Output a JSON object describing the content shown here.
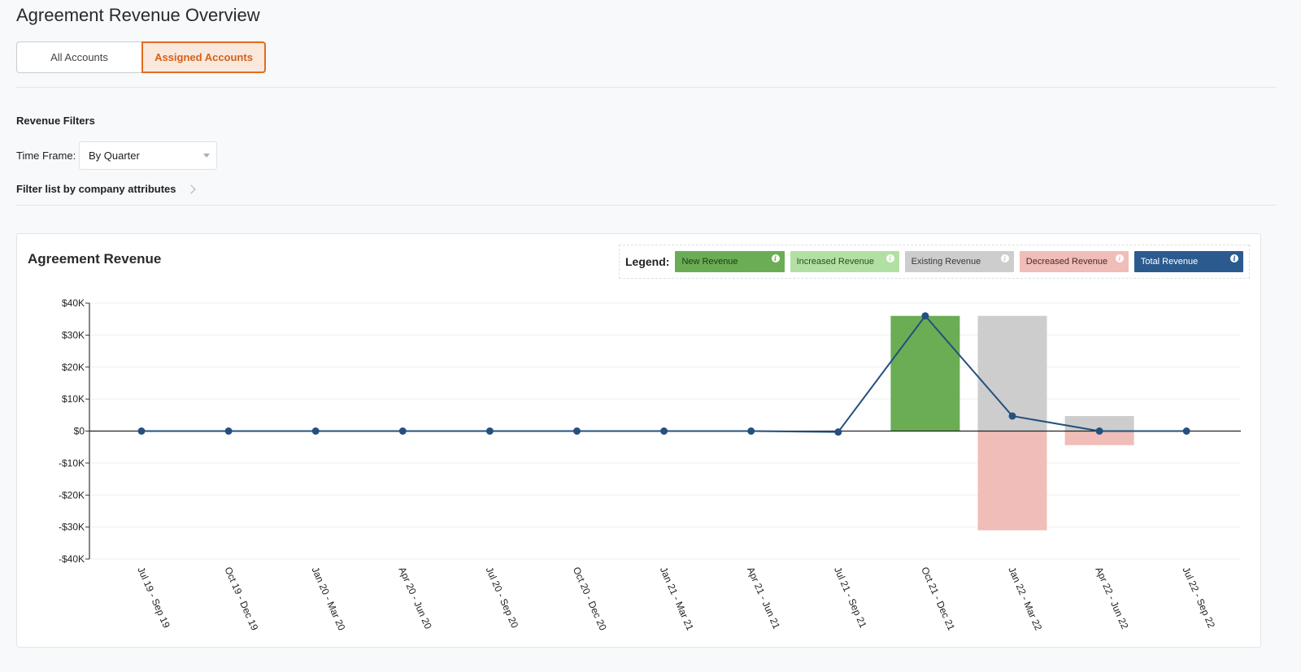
{
  "page": {
    "title": "Agreement Revenue Overview",
    "tabs": [
      {
        "label": "All Accounts",
        "selected": false
      },
      {
        "label": "Assigned Accounts",
        "selected": true
      }
    ]
  },
  "filters": {
    "title": "Revenue Filters",
    "time_frame_label": "Time Frame:",
    "time_frame_value": "By Quarter",
    "company_filter_label": "Filter list by company attributes"
  },
  "card": {
    "title": "Agreement Revenue",
    "legend_label": "Legend:",
    "legend": [
      {
        "label": "New Revenue",
        "color": "#6aad55",
        "text_color": "#1f3a17",
        "icon": "info-icon"
      },
      {
        "label": "Increased Revenue",
        "color": "#b2e0a2",
        "text_color": "#2e4a25",
        "icon": "info-icon"
      },
      {
        "label": "Existing Revenue",
        "color": "#cdcdcd",
        "text_color": "#3a3a3a",
        "icon": "info-icon"
      },
      {
        "label": "Decreased Revenue",
        "color": "#f0bdb8",
        "text_color": "#4a2a28",
        "icon": "info-icon"
      },
      {
        "label": "Total Revenue",
        "color": "#2b5b8e",
        "text_color": "#ffffff",
        "icon": "info-icon"
      }
    ]
  },
  "chart_data": {
    "type": "bar",
    "categories": [
      "Jul 19 - Sep 19",
      "Oct 19 - Dec 19",
      "Jan 20 - Mar 20",
      "Apr 20 - Jun 20",
      "Jul 20 - Sep 20",
      "Oct 20 - Dec 20",
      "Jan 21 - Mar 21",
      "Apr 21 - Jun 21",
      "Jul 21 - Sep 21",
      "Oct 21 - Dec 21",
      "Jan 22 - Mar 22",
      "Apr 22 - Jun 22",
      "Jul 22 - Sep 22"
    ],
    "series": [
      {
        "name": "New Revenue",
        "kind": "bar",
        "color": "#6aad55",
        "values": [
          0,
          0,
          0,
          0,
          0,
          0,
          0,
          0,
          0,
          36000,
          0,
          0,
          0
        ]
      },
      {
        "name": "Increased Revenue",
        "kind": "bar",
        "color": "#b2e0a2",
        "values": [
          0,
          0,
          0,
          0,
          0,
          0,
          0,
          0,
          0,
          0,
          0,
          0,
          0
        ]
      },
      {
        "name": "Existing Revenue",
        "kind": "bar",
        "color": "#cdcdcd",
        "values": [
          0,
          0,
          0,
          0,
          0,
          0,
          0,
          0,
          0,
          0,
          36000,
          4700,
          0
        ]
      },
      {
        "name": "Decreased Revenue",
        "kind": "bar",
        "color": "#f0bdb8",
        "values": [
          0,
          0,
          0,
          0,
          0,
          0,
          0,
          0,
          0,
          0,
          -31000,
          -4400,
          0
        ]
      },
      {
        "name": "Total Revenue",
        "kind": "line",
        "color": "#24507f",
        "values": [
          0,
          0,
          0,
          0,
          0,
          0,
          0,
          0,
          -300,
          36000,
          4700,
          0,
          0
        ]
      }
    ],
    "yticks": [
      "$40K",
      "$30K",
      "$20K",
      "$10K",
      "$0",
      "-$10K",
      "-$20K",
      "-$30K",
      "-$40K"
    ],
    "ytick_values": [
      40000,
      30000,
      20000,
      10000,
      0,
      -10000,
      -20000,
      -30000,
      -40000
    ],
    "ylim": [
      -40000,
      40000
    ],
    "grid": true,
    "legend_position": "top-right"
  }
}
